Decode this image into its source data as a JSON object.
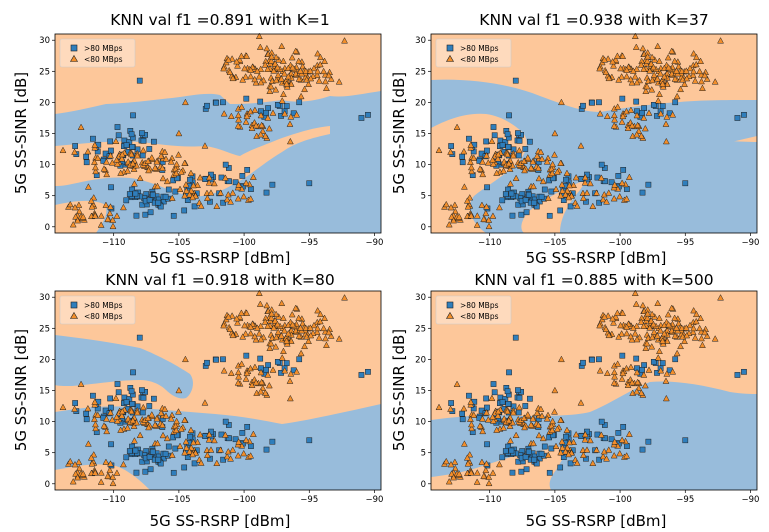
{
  "colors": {
    "high_region": "#98bcdb",
    "low_region": "#fdc79a",
    "high_marker": "#2f7ebc",
    "low_marker": "#f28e2b",
    "marker_edge": "#222222"
  },
  "chart_data": [
    {
      "type": "scatter",
      "title": "KNN val f1 =0.891 with K=1",
      "xlabel": "5G SS-RSRP [dBm]",
      "ylabel": "5G SS-SINR [dB]",
      "xlim": [
        -114.5,
        -89.5
      ],
      "ylim": [
        -1,
        31
      ],
      "xticks": [
        -110,
        -105,
        -100,
        -95,
        -90
      ],
      "yticks": [
        0,
        5,
        10,
        15,
        20,
        25,
        30
      ],
      "legend": {
        "placement": "top-left",
        "entries": [
          ">80 MBps",
          "<80 MBps"
        ]
      },
      "series": [
        {
          "name": ">80 MBps",
          "marker": "square",
          "clusters": [
            {
              "cx": -109.5,
              "cy": 12,
              "sx": 1.6,
              "sy": 2.4,
              "n": 50
            },
            {
              "cx": -107,
              "cy": 4,
              "sx": 2.0,
              "sy": 1.2,
              "n": 45
            },
            {
              "cx": -102,
              "cy": 7,
              "sx": 1.6,
              "sy": 1.5,
              "n": 30
            },
            {
              "cx": -97,
              "cy": 19,
              "sx": 1.2,
              "sy": 0.9,
              "n": 12
            },
            {
              "cx": -101.5,
              "cy": 20,
              "sx": 0.8,
              "sy": 0.5,
              "n": 6
            }
          ],
          "points": [
            [
              -91,
              17.5
            ],
            [
              -90.5,
              18
            ],
            [
              -95,
              7
            ],
            [
              -108,
              23.5
            ]
          ]
        },
        {
          "name": "<80 MBps",
          "marker": "triangle",
          "clusters": [
            {
              "cx": -111.5,
              "cy": 2,
              "sx": 1.3,
              "sy": 1.0,
              "n": 35
            },
            {
              "cx": -108,
              "cy": 10,
              "sx": 2.0,
              "sy": 1.2,
              "n": 85
            },
            {
              "cx": -103,
              "cy": 5.5,
              "sx": 1.7,
              "sy": 1.2,
              "n": 45
            },
            {
              "cx": -98,
              "cy": 26,
              "sx": 2.3,
              "sy": 1.4,
              "n": 90
            },
            {
              "cx": -96,
              "cy": 23.5,
              "sx": 1.6,
              "sy": 1.3,
              "n": 55
            },
            {
              "cx": -99,
              "cy": 17,
              "sx": 1.5,
              "sy": 1.4,
              "n": 35
            }
          ],
          "points": [
            [
              -113,
              12
            ],
            [
              -112.5,
              16
            ],
            [
              -105,
              15
            ],
            [
              -104.5,
              20
            ],
            [
              -103,
              13
            ]
          ]
        }
      ]
    },
    {
      "type": "scatter",
      "title": "KNN val f1 =0.938 with K=37",
      "xlabel": "5G SS-RSRP [dBm]",
      "ylabel": "5G SS-SINR [dB]",
      "xlim": [
        -114.5,
        -89.5
      ],
      "ylim": [
        -1,
        31
      ],
      "xticks": [
        -110,
        -105,
        -100,
        -95,
        -90
      ],
      "yticks": [
        0,
        5,
        10,
        15,
        20,
        25,
        30
      ],
      "legend": {
        "placement": "top-left",
        "entries": [
          ">80 MBps",
          "<80 MBps"
        ]
      },
      "series": [
        {
          "name": ">80 MBps",
          "marker": "square",
          "clusters": [
            {
              "cx": -109.5,
              "cy": 12,
              "sx": 1.6,
              "sy": 2.4,
              "n": 50
            },
            {
              "cx": -107,
              "cy": 4,
              "sx": 2.0,
              "sy": 1.2,
              "n": 45
            },
            {
              "cx": -102,
              "cy": 7,
              "sx": 1.6,
              "sy": 1.5,
              "n": 30
            },
            {
              "cx": -97,
              "cy": 19,
              "sx": 1.2,
              "sy": 0.9,
              "n": 12
            },
            {
              "cx": -101.5,
              "cy": 20,
              "sx": 0.8,
              "sy": 0.5,
              "n": 6
            }
          ],
          "points": [
            [
              -91,
              17.5
            ],
            [
              -90.5,
              18
            ],
            [
              -95,
              7
            ],
            [
              -108,
              23.5
            ]
          ]
        },
        {
          "name": "<80 MBps",
          "marker": "triangle",
          "clusters": [
            {
              "cx": -111.5,
              "cy": 2,
              "sx": 1.3,
              "sy": 1.0,
              "n": 35
            },
            {
              "cx": -108,
              "cy": 10,
              "sx": 2.0,
              "sy": 1.2,
              "n": 85
            },
            {
              "cx": -103,
              "cy": 5.5,
              "sx": 1.7,
              "sy": 1.2,
              "n": 45
            },
            {
              "cx": -98,
              "cy": 26,
              "sx": 2.3,
              "sy": 1.4,
              "n": 90
            },
            {
              "cx": -96,
              "cy": 23.5,
              "sx": 1.6,
              "sy": 1.3,
              "n": 55
            },
            {
              "cx": -99,
              "cy": 17,
              "sx": 1.5,
              "sy": 1.4,
              "n": 35
            }
          ],
          "points": [
            [
              -113,
              12
            ],
            [
              -112.5,
              16
            ],
            [
              -105,
              15
            ],
            [
              -104.5,
              20
            ],
            [
              -103,
              13
            ]
          ]
        }
      ]
    },
    {
      "type": "scatter",
      "title": "KNN val f1 =0.918 with K=80",
      "xlabel": "5G SS-RSRP [dBm]",
      "ylabel": "5G SS-SINR [dB]",
      "xlim": [
        -114.5,
        -89.5
      ],
      "ylim": [
        -1,
        31
      ],
      "xticks": [
        -110,
        -105,
        -100,
        -95,
        -90
      ],
      "yticks": [
        0,
        5,
        10,
        15,
        20,
        25,
        30
      ],
      "legend": {
        "placement": "top-left",
        "entries": [
          ">80 MBps",
          "<80 MBps"
        ]
      },
      "series": [
        {
          "name": ">80 MBps",
          "marker": "square",
          "clusters": [
            {
              "cx": -109.5,
              "cy": 12,
              "sx": 1.6,
              "sy": 2.4,
              "n": 50
            },
            {
              "cx": -107,
              "cy": 4,
              "sx": 2.0,
              "sy": 1.2,
              "n": 45
            },
            {
              "cx": -102,
              "cy": 7,
              "sx": 1.6,
              "sy": 1.5,
              "n": 30
            },
            {
              "cx": -97,
              "cy": 19,
              "sx": 1.2,
              "sy": 0.9,
              "n": 12
            },
            {
              "cx": -101.5,
              "cy": 20,
              "sx": 0.8,
              "sy": 0.5,
              "n": 6
            }
          ],
          "points": [
            [
              -91,
              17.5
            ],
            [
              -90.5,
              18
            ],
            [
              -95,
              7
            ],
            [
              -108,
              23.5
            ]
          ]
        },
        {
          "name": "<80 MBps",
          "marker": "triangle",
          "clusters": [
            {
              "cx": -111.5,
              "cy": 2,
              "sx": 1.3,
              "sy": 1.0,
              "n": 35
            },
            {
              "cx": -108,
              "cy": 10,
              "sx": 2.0,
              "sy": 1.2,
              "n": 85
            },
            {
              "cx": -103,
              "cy": 5.5,
              "sx": 1.7,
              "sy": 1.2,
              "n": 45
            },
            {
              "cx": -98,
              "cy": 26,
              "sx": 2.3,
              "sy": 1.4,
              "n": 90
            },
            {
              "cx": -96,
              "cy": 23.5,
              "sx": 1.6,
              "sy": 1.3,
              "n": 55
            },
            {
              "cx": -99,
              "cy": 17,
              "sx": 1.5,
              "sy": 1.4,
              "n": 35
            }
          ],
          "points": [
            [
              -113,
              12
            ],
            [
              -112.5,
              16
            ],
            [
              -105,
              15
            ],
            [
              -104.5,
              20
            ],
            [
              -103,
              13
            ]
          ]
        }
      ]
    },
    {
      "type": "scatter",
      "title": "KNN val f1 =0.885 with K=500",
      "xlabel": "5G SS-RSRP [dBm]",
      "ylabel": "5G SS-SINR [dB]",
      "xlim": [
        -114.5,
        -89.5
      ],
      "ylim": [
        -1,
        31
      ],
      "xticks": [
        -110,
        -105,
        -100,
        -95,
        -90
      ],
      "yticks": [
        0,
        5,
        10,
        15,
        20,
        25,
        30
      ],
      "legend": {
        "placement": "top-left",
        "entries": [
          ">80 MBps",
          "<80 MBps"
        ]
      },
      "series": [
        {
          "name": ">80 MBps",
          "marker": "square",
          "clusters": [
            {
              "cx": -109.5,
              "cy": 12,
              "sx": 1.6,
              "sy": 2.4,
              "n": 50
            },
            {
              "cx": -107,
              "cy": 4,
              "sx": 2.0,
              "sy": 1.2,
              "n": 45
            },
            {
              "cx": -102,
              "cy": 7,
              "sx": 1.6,
              "sy": 1.5,
              "n": 30
            },
            {
              "cx": -97,
              "cy": 19,
              "sx": 1.2,
              "sy": 0.9,
              "n": 12
            },
            {
              "cx": -101.5,
              "cy": 20,
              "sx": 0.8,
              "sy": 0.5,
              "n": 6
            }
          ],
          "points": [
            [
              -91,
              17.5
            ],
            [
              -90.5,
              18
            ],
            [
              -95,
              7
            ],
            [
              -108,
              23.5
            ]
          ]
        },
        {
          "name": "<80 MBps",
          "marker": "triangle",
          "clusters": [
            {
              "cx": -111.5,
              "cy": 2,
              "sx": 1.3,
              "sy": 1.0,
              "n": 35
            },
            {
              "cx": -108,
              "cy": 10,
              "sx": 2.0,
              "sy": 1.2,
              "n": 85
            },
            {
              "cx": -103,
              "cy": 5.5,
              "sx": 1.7,
              "sy": 1.2,
              "n": 45
            },
            {
              "cx": -98,
              "cy": 26,
              "sx": 2.3,
              "sy": 1.4,
              "n": 90
            },
            {
              "cx": -96,
              "cy": 23.5,
              "sx": 1.6,
              "sy": 1.3,
              "n": 55
            },
            {
              "cx": -99,
              "cy": 17,
              "sx": 1.5,
              "sy": 1.4,
              "n": 35
            }
          ],
          "points": [
            [
              -113,
              12
            ],
            [
              -112.5,
              16
            ],
            [
              -105,
              15
            ],
            [
              -104.5,
              20
            ],
            [
              -103,
              13
            ]
          ]
        }
      ]
    }
  ]
}
